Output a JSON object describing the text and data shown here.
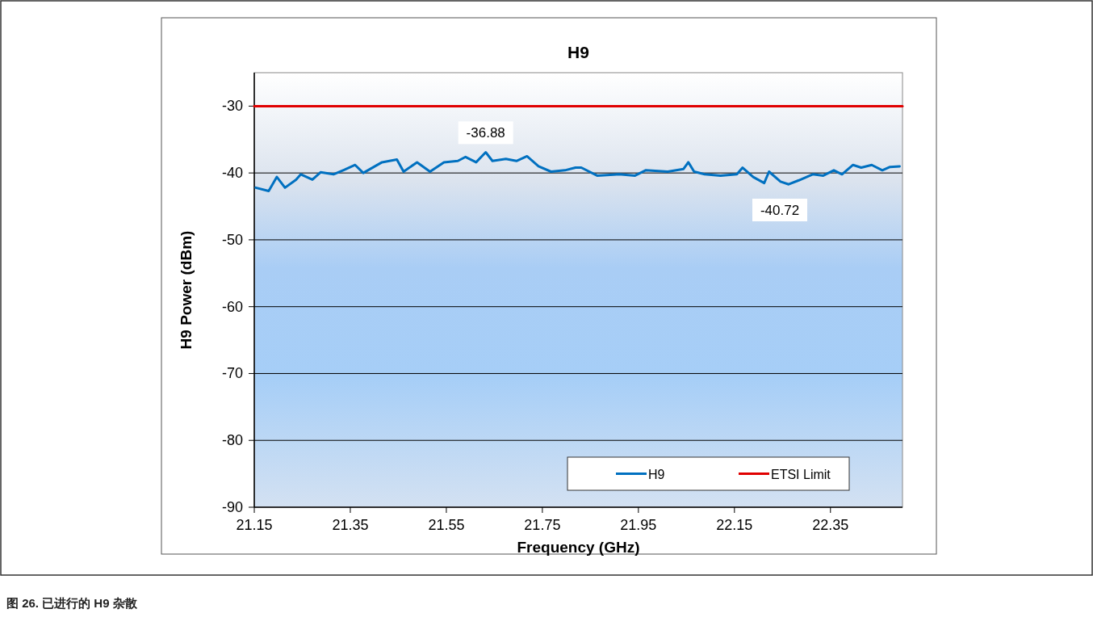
{
  "chart_data": {
    "type": "line",
    "title": "H9",
    "xlabel": "Frequency (GHz)",
    "ylabel": "H9 Power (dBm)",
    "xlim": [
      21.15,
      22.5
    ],
    "xticks": [
      21.15,
      21.35,
      21.55,
      21.75,
      21.95,
      22.15,
      22.35
    ],
    "ylim": [
      -90,
      -25
    ],
    "yticks": [
      -90,
      -80,
      -70,
      -60,
      -50,
      -40,
      -30
    ],
    "grid": "y",
    "legend": "bottom right",
    "marker": "none",
    "line_style": "solid",
    "series": [
      {
        "name": "H9",
        "color": "#0070c0",
        "x": [
          21.153,
          21.18,
          21.197,
          21.214,
          21.237,
          21.247,
          21.271,
          21.288,
          21.315,
          21.338,
          21.36,
          21.377,
          21.416,
          21.447,
          21.461,
          21.489,
          21.516,
          21.545,
          21.574,
          21.59,
          21.612,
          21.632,
          21.646,
          21.674,
          21.696,
          21.718,
          21.742,
          21.768,
          21.797,
          21.819,
          21.831,
          21.864,
          21.91,
          21.943,
          21.965,
          22.011,
          22.044,
          22.054,
          22.066,
          22.088,
          22.121,
          22.155,
          22.167,
          22.189,
          22.212,
          22.222,
          22.246,
          22.263,
          22.284,
          22.313,
          22.335,
          22.357,
          22.374,
          22.397,
          22.414,
          22.436,
          22.458,
          22.474,
          22.494
        ],
        "values": [
          -42.2,
          -42.7,
          -40.6,
          -42.2,
          -41.0,
          -40.2,
          -41.0,
          -39.9,
          -40.2,
          -39.5,
          -38.8,
          -40.0,
          -38.4,
          -38.0,
          -39.8,
          -38.4,
          -39.8,
          -38.4,
          -38.2,
          -37.6,
          -38.4,
          -36.9,
          -38.2,
          -37.9,
          -38.2,
          -37.5,
          -39.0,
          -39.8,
          -39.6,
          -39.2,
          -39.2,
          -40.4,
          -40.2,
          -40.4,
          -39.6,
          -39.8,
          -39.4,
          -38.4,
          -39.8,
          -40.2,
          -40.4,
          -40.2,
          -39.2,
          -40.6,
          -41.5,
          -39.8,
          -41.3,
          -41.7,
          -41.1,
          -40.2,
          -40.4,
          -39.6,
          -40.2,
          -38.8,
          -39.2,
          -38.8,
          -39.6,
          -39.1,
          -39.0
        ]
      },
      {
        "name": "ETSI Limit",
        "color": "#e00000",
        "x": [
          21.15,
          22.5
        ],
        "values": [
          -30,
          -30
        ]
      }
    ],
    "annotations": [
      {
        "text": "-36.88",
        "x": 21.632,
        "y": -36.88
      },
      "-40.72",
      "图 26. 已进行的 H9 杂散"
    ]
  }
}
